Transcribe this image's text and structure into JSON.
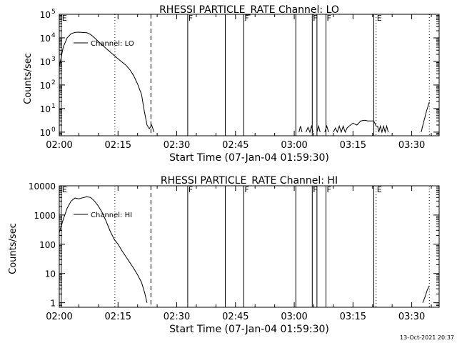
{
  "footer": {
    "timestamp": "13-Oct-2021 20:37"
  },
  "chart_data": [
    {
      "type": "line",
      "title": "RHESSI PARTICLE_RATE Channel: LO",
      "xlabel": "Start Time (07-Jan-04 01:59:30)",
      "ylabel": "Counts/sec",
      "yscale": "log",
      "ylim": [
        0.7,
        100000
      ],
      "xlim_minutes_after_0200": [
        0,
        97
      ],
      "xticks": [
        {
          "t": 0,
          "label": "02:00"
        },
        {
          "t": 15,
          "label": "02:15"
        },
        {
          "t": 30,
          "label": "02:30"
        },
        {
          "t": 45,
          "label": "02:45"
        },
        {
          "t": 60,
          "label": "03:00"
        },
        {
          "t": 75,
          "label": "03:15"
        },
        {
          "t": 90,
          "label": "03:30"
        }
      ],
      "yticks": [
        {
          "v": 1,
          "base": "10",
          "exp": "0"
        },
        {
          "v": 10,
          "base": "10",
          "exp": "1"
        },
        {
          "v": 100,
          "base": "10",
          "exp": "2"
        },
        {
          "v": 1000,
          "base": "10",
          "exp": "3"
        },
        {
          "v": 10000,
          "base": "10",
          "exp": "4"
        },
        {
          "v": 100000,
          "base": "10",
          "exp": "5"
        }
      ],
      "legend": {
        "label": "Channel: LO",
        "position": "top-left"
      },
      "flags": [
        {
          "t": 0.5,
          "label": "E",
          "style": "solid"
        },
        {
          "t": 14.2,
          "label": "",
          "style": "dotted"
        },
        {
          "t": 23.4,
          "label": "",
          "style": "dashed"
        },
        {
          "t": 32.8,
          "label": "F",
          "style": "solid"
        },
        {
          "t": 42.4,
          "label": "",
          "style": "solid"
        },
        {
          "t": 47.1,
          "label": "F",
          "style": "solid"
        },
        {
          "t": 60.4,
          "label": "",
          "style": "solid"
        },
        {
          "t": 64.6,
          "label": "F",
          "style": "solid"
        },
        {
          "t": 65.8,
          "label": "",
          "style": "solid"
        },
        {
          "t": 68.1,
          "label": "F",
          "style": "solid"
        },
        {
          "t": 80.3,
          "label": "",
          "style": "solid"
        },
        {
          "t": 80.9,
          "label": "E",
          "style": "dotted"
        },
        {
          "t": 94.5,
          "label": "",
          "style": "dotted"
        }
      ],
      "series": [
        {
          "name": "Channel: LO",
          "segments": [
            [
              [
                0,
                600
              ],
              [
                0.5,
                1500
              ],
              [
                1,
                4000
              ],
              [
                2,
                10000
              ],
              [
                3,
                15000
              ],
              [
                4,
                17000
              ],
              [
                5,
                17500
              ],
              [
                6,
                17000
              ],
              [
                7,
                16500
              ],
              [
                8,
                14000
              ],
              [
                9,
                10000
              ],
              [
                10,
                7000
              ],
              [
                11,
                5000
              ],
              [
                12,
                3500
              ],
              [
                13,
                2500
              ],
              [
                14,
                1800
              ],
              [
                15,
                1300
              ],
              [
                16,
                950
              ],
              [
                17,
                700
              ],
              [
                18,
                450
              ],
              [
                19,
                250
              ],
              [
                20,
                110
              ],
              [
                21,
                40
              ],
              [
                21.7,
                8
              ],
              [
                22.4,
                2
              ],
              [
                23,
                1.4
              ],
              [
                23.6,
                2
              ],
              [
                24.2,
                1
              ]
            ],
            [
              [
                61.2,
                1
              ],
              [
                61.6,
                1.8
              ],
              [
                62,
                1
              ]
            ],
            [
              [
                63,
                1
              ],
              [
                63.5,
                1.6
              ],
              [
                64,
                1
              ],
              [
                64.4,
                1.8
              ],
              [
                64.8,
                1
              ]
            ],
            [
              [
                65.8,
                1
              ],
              [
                66.2,
                1.8
              ],
              [
                66.6,
                1
              ]
            ],
            [
              [
                67.8,
                1
              ],
              [
                68.3,
                1.8
              ],
              [
                68.8,
                1
              ]
            ],
            [
              [
                70,
                1
              ],
              [
                70.5,
                1.5
              ],
              [
                71,
                1
              ],
              [
                71.5,
                1.8
              ],
              [
                72,
                1
              ],
              [
                72.5,
                1.8
              ],
              [
                73,
                1
              ],
              [
                73.5,
                1.5
              ],
              [
                74,
                1.8
              ],
              [
                75,
                2.4
              ],
              [
                76,
                2
              ],
              [
                77,
                3
              ],
              [
                78,
                3.2
              ],
              [
                78.8,
                3
              ],
              [
                80.3,
                3
              ],
              [
                80.9,
                1.8
              ],
              [
                81.3,
                1.8
              ],
              [
                81.6,
                1
              ],
              [
                82,
                1.8
              ],
              [
                82.4,
                1
              ],
              [
                82.8,
                1.8
              ],
              [
                83.2,
                1
              ],
              [
                83.6,
                1.8
              ],
              [
                84,
                1
              ]
            ],
            [
              [
                92.4,
                1
              ],
              [
                93,
                2.5
              ],
              [
                93.8,
                8
              ],
              [
                94.5,
                19
              ]
            ]
          ]
        }
      ]
    },
    {
      "type": "line",
      "title": "RHESSI PARTICLE_RATE Channel: HI",
      "xlabel": "Start Time (07-Jan-04 01:59:30)",
      "ylabel": "Counts/sec",
      "yscale": "log",
      "ylim": [
        0.7,
        10000
      ],
      "xlim_minutes_after_0200": [
        0,
        97
      ],
      "xticks": [
        {
          "t": 0,
          "label": "02:00"
        },
        {
          "t": 15,
          "label": "02:15"
        },
        {
          "t": 30,
          "label": "02:30"
        },
        {
          "t": 45,
          "label": "02:45"
        },
        {
          "t": 60,
          "label": "03:00"
        },
        {
          "t": 75,
          "label": "03:15"
        },
        {
          "t": 90,
          "label": "03:30"
        }
      ],
      "yticks": [
        {
          "v": 1,
          "label": "1"
        },
        {
          "v": 10,
          "label": "10"
        },
        {
          "v": 100,
          "label": "100"
        },
        {
          "v": 1000,
          "label": "1000"
        },
        {
          "v": 10000,
          "label": "10000"
        }
      ],
      "legend": {
        "label": "Channel: HI",
        "position": "top-left"
      },
      "flags": [
        {
          "t": 0.5,
          "label": "E",
          "style": "solid"
        },
        {
          "t": 14.2,
          "label": "",
          "style": "dotted"
        },
        {
          "t": 23.4,
          "label": "",
          "style": "dashed"
        },
        {
          "t": 32.8,
          "label": "F",
          "style": "solid"
        },
        {
          "t": 42.4,
          "label": "",
          "style": "solid"
        },
        {
          "t": 47.1,
          "label": "F",
          "style": "solid"
        },
        {
          "t": 60.4,
          "label": "",
          "style": "solid"
        },
        {
          "t": 64.6,
          "label": "F",
          "style": "solid"
        },
        {
          "t": 65.8,
          "label": "",
          "style": "solid"
        },
        {
          "t": 68.1,
          "label": "F",
          "style": "solid"
        },
        {
          "t": 80.3,
          "label": "",
          "style": "solid"
        },
        {
          "t": 80.9,
          "label": "E",
          "style": "dotted"
        },
        {
          "t": 94.5,
          "label": "",
          "style": "dotted"
        }
      ],
      "series": [
        {
          "name": "Channel: HI",
          "segments": [
            [
              [
                0,
                250
              ],
              [
                1,
                700
              ],
              [
                2,
                1700
              ],
              [
                3,
                3000
              ],
              [
                4,
                3800
              ],
              [
                5,
                3600
              ],
              [
                6,
                3900
              ],
              [
                7,
                4200
              ],
              [
                8,
                4000
              ],
              [
                9,
                3000
              ],
              [
                10,
                2000
              ],
              [
                11,
                1200
              ],
              [
                12,
                600
              ],
              [
                13,
                280
              ],
              [
                14,
                150
              ],
              [
                15,
                100
              ],
              [
                16,
                60
              ],
              [
                17,
                38
              ],
              [
                18,
                24
              ],
              [
                19,
                15
              ],
              [
                20,
                9
              ],
              [
                21,
                5
              ],
              [
                21.8,
                2.2
              ],
              [
                22.4,
                1
              ]
            ],
            [
              [
                92.8,
                1
              ],
              [
                93.4,
                1.6
              ],
              [
                94,
                2.8
              ],
              [
                94.5,
                3.8
              ]
            ]
          ]
        }
      ]
    }
  ]
}
